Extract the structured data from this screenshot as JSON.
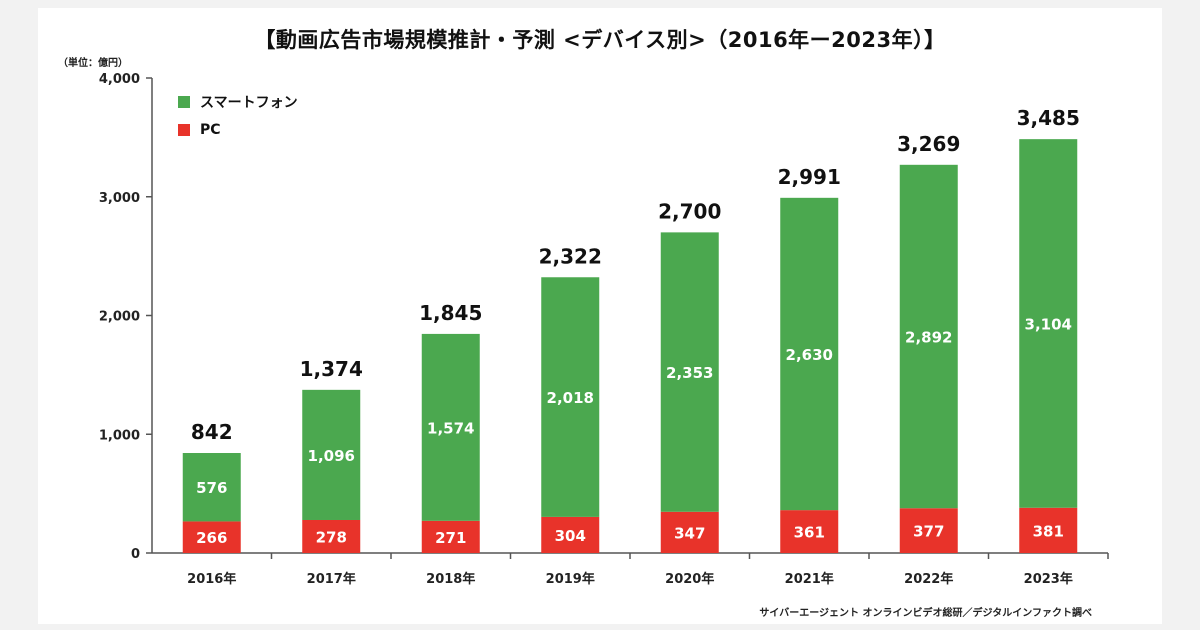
{
  "title": "【動画広告市場規模推計・予測 <デバイス別>（2016年ー2023年）】",
  "unit_label": "（単位：億円）",
  "source": "サイバーエージェント オンラインビデオ総研／デジタルインファクト調べ",
  "colors": {
    "smartphone": "#4ba84f",
    "pc": "#e8332a",
    "axis": "#555555"
  },
  "chart_data": {
    "type": "bar",
    "stacked": true,
    "categories": [
      "2016年",
      "2017年",
      "2018年",
      "2019年",
      "2020年",
      "2021年",
      "2022年",
      "2023年"
    ],
    "series": [
      {
        "name": "PC",
        "values": [
          266,
          278,
          271,
          304,
          347,
          361,
          377,
          381
        ]
      },
      {
        "name": "スマートフォン",
        "values": [
          576,
          1096,
          1574,
          2018,
          2353,
          2630,
          2892,
          3104
        ]
      }
    ],
    "totals": [
      842,
      1374,
      1845,
      2322,
      2700,
      2991,
      3269,
      3485
    ],
    "y_ticks": [
      "0",
      "1,000",
      "2,000",
      "3,000",
      "4,000"
    ],
    "ylim": [
      0,
      4000
    ],
    "grid": false,
    "legend_position": "top-left",
    "legend": [
      {
        "name": "スマートフォン",
        "color_key": "smartphone"
      },
      {
        "name": "PC",
        "color_key": "pc"
      }
    ]
  }
}
